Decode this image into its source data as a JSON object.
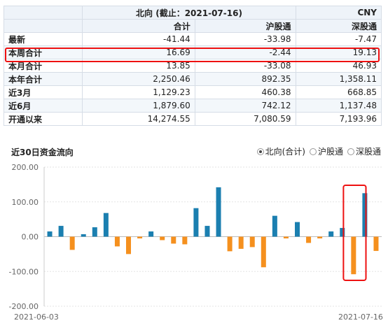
{
  "table": {
    "title": "北向 (截止：2021-07-16)",
    "unit": "CNY",
    "columns": [
      "合计",
      "沪股通",
      "深股通"
    ],
    "rows": [
      {
        "label": "最新",
        "values": [
          "-41.44",
          "-33.98",
          "-7.47"
        ]
      },
      {
        "label": "本周合计",
        "values": [
          "16.69",
          "-2.44",
          "19.13"
        ]
      },
      {
        "label": "本月合计",
        "values": [
          "13.85",
          "-33.08",
          "46.93"
        ]
      },
      {
        "label": "本年合计",
        "values": [
          "2,250.46",
          "892.35",
          "1,358.11"
        ]
      },
      {
        "label": "近3月",
        "values": [
          "1,129.23",
          "460.38",
          "668.85"
        ]
      },
      {
        "label": "近6月",
        "values": [
          "1,879.60",
          "742.12",
          "1,137.48"
        ]
      },
      {
        "label": "开通以来",
        "values": [
          "14,274.55",
          "7,080.59",
          "7,193.96"
        ]
      }
    ]
  },
  "chart_section": {
    "title": "近30日资金流向",
    "radio_options": [
      {
        "label": "北向(合计)",
        "selected": true
      },
      {
        "label": "沪股通",
        "selected": false
      },
      {
        "label": "深股通",
        "selected": false
      }
    ]
  },
  "chart_data": {
    "type": "bar",
    "ylim": [
      -200,
      200
    ],
    "yticks": [
      "200.00",
      "100.00",
      "0.00",
      "-100.00",
      "-200.00"
    ],
    "x_start_label": "2021-06-03",
    "x_end_label": "2021-07-16",
    "values": [
      15,
      31,
      -38,
      7,
      27,
      68,
      -28,
      -50,
      -5,
      15,
      -10,
      -20,
      -22,
      82,
      31,
      142,
      -42,
      -35,
      -30,
      -88,
      60,
      -5,
      42,
      -18,
      -5,
      15,
      25,
      -108,
      125,
      -41
    ],
    "colors": {
      "positive": "#1b7fb0",
      "negative": "#f5901e"
    }
  }
}
